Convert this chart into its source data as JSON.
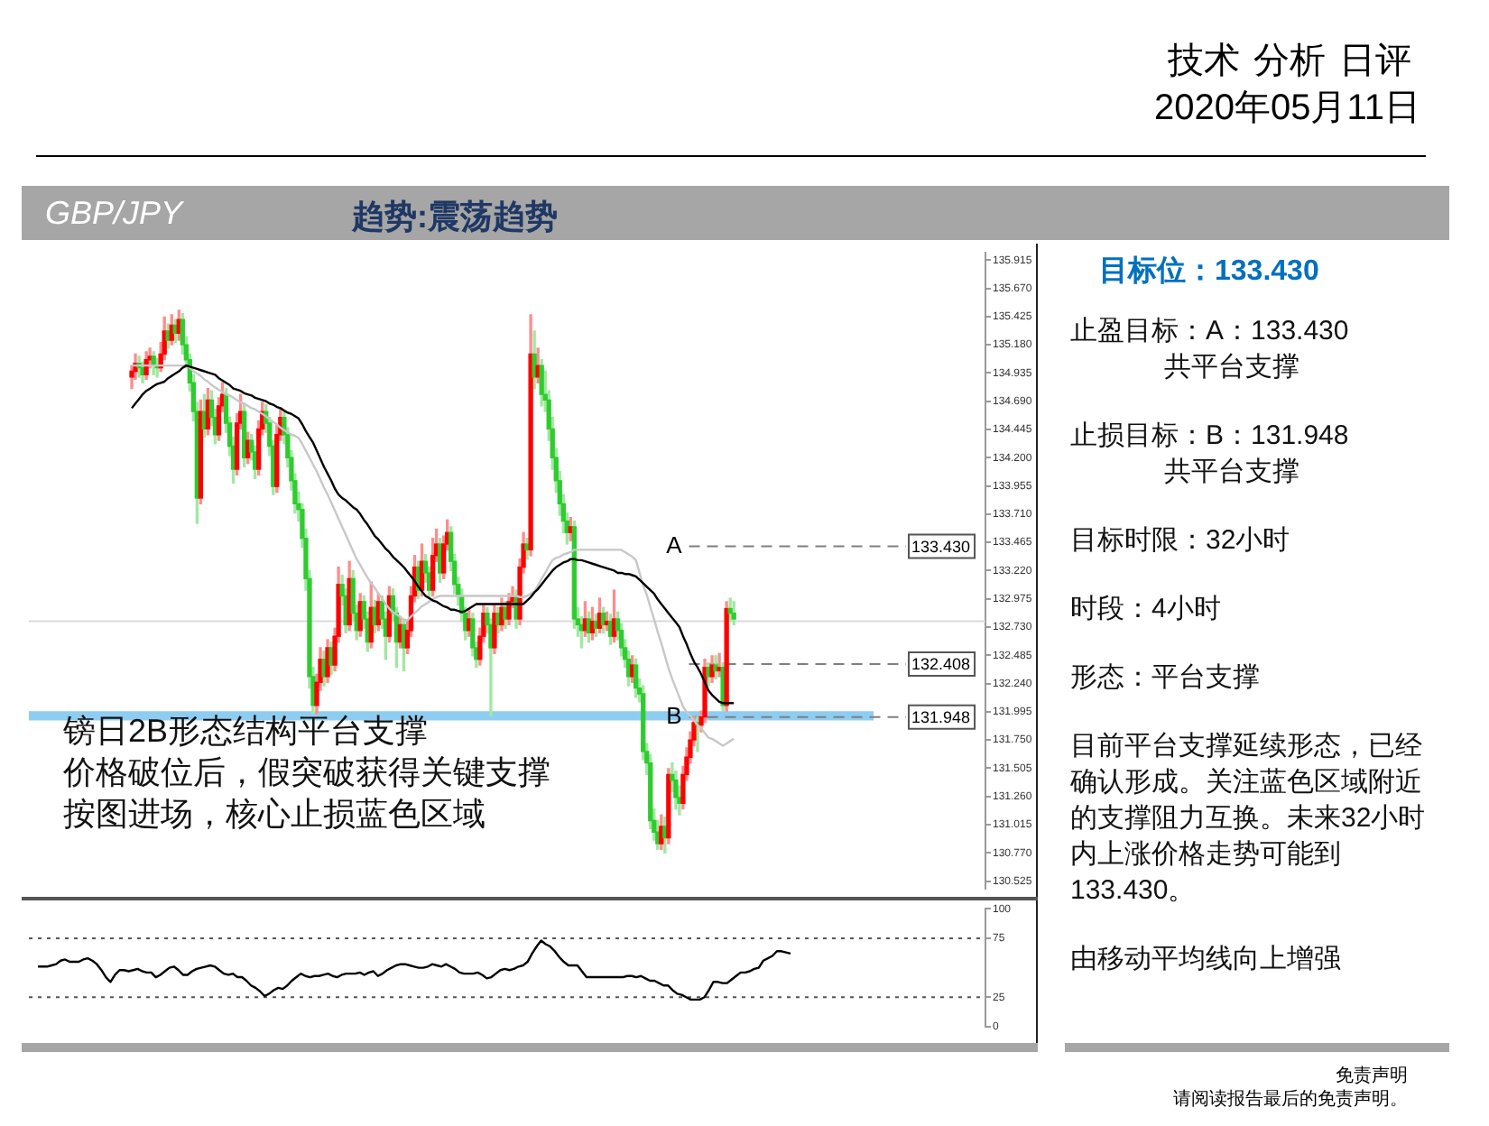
{
  "chart_data": [
    {
      "type": "candlestick",
      "title": "GBP/JPY",
      "subtitle": "趋势:震荡趋势",
      "categories": [
        null,
        null,
        null,
        null,
        null,
        null,
        null,
        null,
        null,
        null,
        null,
        null,
        null,
        null,
        null,
        null,
        null,
        null,
        null,
        null,
        null,
        null,
        null,
        null,
        null,
        null,
        null,
        null,
        null,
        null,
        null,
        null,
        null,
        null,
        null,
        null,
        null,
        null,
        null,
        null,
        null,
        null,
        null,
        null,
        null,
        null,
        null,
        null,
        null,
        null,
        null,
        null,
        null,
        null,
        null,
        null,
        null,
        null,
        null,
        null,
        null,
        null,
        null,
        null,
        null,
        null,
        null,
        null,
        null,
        null,
        null,
        null,
        null,
        null,
        null,
        null,
        null,
        null,
        null,
        null,
        null,
        null,
        null,
        null,
        null,
        null,
        null,
        null,
        null,
        null,
        null,
        null,
        null,
        null,
        null,
        null,
        null,
        null,
        null,
        null,
        null,
        null,
        null,
        null,
        null,
        null,
        null,
        null,
        null,
        null,
        null,
        null,
        null,
        null,
        null,
        null,
        null,
        null,
        null,
        null,
        null,
        null,
        null,
        null,
        null,
        null,
        null,
        null,
        null,
        null,
        null,
        null,
        null,
        null,
        null,
        null,
        null,
        null,
        null,
        null,
        null,
        null,
        null,
        null,
        null,
        null,
        null,
        null,
        null,
        null,
        null,
        null,
        null,
        null,
        null,
        null,
        null,
        null,
        null,
        null,
        null,
        null,
        null,
        null,
        null,
        null,
        null
      ],
      "colors": [
        "#ff0000",
        "#ff0000",
        "#2ecc2e",
        "#2ecc2e",
        "#ff0000",
        "#ff0000",
        "#2ecc2e",
        "#2ecc2e",
        "#ff0000",
        "#ff0000",
        "#2ecc2e",
        "#ff0000",
        "#2ecc2e",
        "#ff0000",
        "#2ecc2e",
        "#2ecc2e",
        "#2ecc2e",
        "#2ecc2e",
        "#2ecc2e",
        "#ff0000",
        "#2ecc2e",
        "#ff0000",
        "#2ecc2e",
        "#2ecc2e",
        "#ff0000",
        "#ff0000",
        "#2ecc2e",
        "#2ecc2e",
        "#2ecc2e",
        "#ff0000",
        "#ff0000",
        "#2ecc2e",
        "#ff0000",
        "#2ecc2e",
        "#2ecc2e",
        "#ff0000",
        "#ff0000",
        "#2ecc2e",
        "#2ecc2e",
        "#2ecc2e",
        "#ff0000",
        "#ff0000",
        "#2ecc2e",
        "#2ecc2e",
        "#2ecc2e",
        "#2ecc2e",
        "#2ecc2e",
        "#2ecc2e",
        "#2ecc2e",
        "#2ecc2e",
        "#2ecc2e",
        "#ff0000",
        "#ff0000",
        "#2ecc2e",
        "#ff0000",
        "#2ecc2e",
        "#ff0000",
        "#ff0000",
        "#2ecc2e",
        "#2ecc2e",
        "#ff0000",
        "#2ecc2e",
        "#2ecc2e",
        "#ff0000",
        "#2ecc2e",
        "#2ecc2e",
        "#ff0000",
        "#2ecc2e",
        "#ff0000",
        "#2ecc2e",
        "#2ecc2e",
        "#ff0000",
        "#2ecc2e",
        "#2ecc2e",
        "#ff0000",
        "#2ecc2e",
        "#ff0000",
        "#ff0000",
        "#ff0000",
        "#2ecc2e",
        "#ff0000",
        "#2ecc2e",
        "#2ecc2e",
        "#ff0000",
        "#ff0000",
        "#2ecc2e",
        "#ff0000",
        "#ff0000",
        "#2ecc2e",
        "#2ecc2e",
        "#2ecc2e",
        "#2ecc2e",
        "#2ecc2e",
        "#ff0000",
        "#2ecc2e",
        "#2ecc2e",
        "#ff0000",
        "#ff0000",
        "#2ecc2e",
        "#2ecc2e",
        "#ff0000",
        "#2ecc2e",
        "#ff0000",
        "#2ecc2e",
        "#ff0000",
        "#ff0000",
        "#2ecc2e",
        "#ff0000",
        "#ff0000",
        "#2ecc2e",
        "#ff0000",
        "#2ecc2e",
        "#ff0000",
        "#2ecc2e",
        "#2ecc2e",
        "#2ecc2e",
        "#2ecc2e",
        "#2ecc2e",
        "#2ecc2e",
        "#2ecc2e",
        "#2ecc2e",
        "#ff0000",
        "#2ecc2e",
        "#2ecc2e",
        "#2ecc2e",
        "#ff0000",
        "#2ecc2e",
        "#ff0000",
        "#2ecc2e",
        "#ff0000",
        "#2ecc2e",
        "#ff0000",
        "#2ecc2e",
        "#ff0000",
        "#2ecc2e",
        "#2ecc2e",
        "#2ecc2e",
        "#2ecc2e",
        "#ff0000",
        "#2ecc2e",
        "#2ecc2e",
        "#2ecc2e",
        "#2ecc2e",
        "#2ecc2e",
        "#2ecc2e",
        "#2ecc2e",
        "#ff0000",
        "#2ecc2e",
        "#ff0000",
        "#2ecc2e",
        "#2ecc2e",
        "#2ecc2e",
        "#ff0000",
        "#ff0000",
        "#ff0000",
        "#ff0000",
        "#2ecc2e",
        "#ff0000",
        "#ff0000",
        "#2ecc2e",
        "#ff0000",
        "#2ecc2e",
        "#ff0000",
        "#2ecc2e",
        "#ff0000",
        "#2ecc2e",
        "#2ecc2e"
      ],
      "ohlc": [
        [
          134.9,
          135.0,
          134.8,
          134.95
        ],
        [
          134.95,
          135.1,
          134.88,
          135.02
        ],
        [
          135.02,
          135.08,
          134.9,
          134.98
        ],
        [
          134.98,
          135.03,
          134.85,
          134.92
        ],
        [
          134.92,
          135.12,
          134.88,
          135.05
        ],
        [
          135.05,
          135.15,
          134.98,
          135.08
        ],
        [
          135.08,
          135.12,
          134.92,
          135.0
        ],
        [
          135.0,
          135.06,
          134.9,
          134.98
        ],
        [
          134.98,
          135.2,
          134.95,
          135.1
        ],
        [
          135.1,
          135.42,
          135.05,
          135.3
        ],
        [
          135.3,
          135.36,
          135.15,
          135.22
        ],
        [
          135.22,
          135.44,
          135.18,
          135.35
        ],
        [
          135.35,
          135.4,
          135.2,
          135.28
        ],
        [
          135.28,
          135.48,
          135.22,
          135.4
        ],
        [
          135.4,
          135.45,
          135.1,
          135.18
        ],
        [
          135.18,
          135.25,
          134.98,
          135.05
        ],
        [
          135.05,
          135.1,
          134.78,
          134.85
        ],
        [
          134.85,
          134.92,
          134.52,
          134.6
        ],
        [
          134.6,
          134.68,
          133.63,
          133.85
        ],
        [
          133.85,
          134.7,
          133.8,
          134.6
        ],
        [
          134.6,
          134.75,
          134.38,
          134.45
        ],
        [
          134.45,
          134.8,
          134.4,
          134.7
        ],
        [
          134.7,
          134.78,
          134.48,
          134.55
        ],
        [
          134.55,
          134.62,
          134.32,
          134.4
        ],
        [
          134.4,
          134.72,
          134.35,
          134.65
        ],
        [
          134.65,
          134.85,
          134.6,
          134.75
        ],
        [
          134.75,
          134.8,
          134.42,
          134.5
        ],
        [
          134.5,
          134.55,
          134.22,
          134.3
        ],
        [
          134.3,
          134.38,
          133.98,
          134.1
        ],
        [
          134.1,
          134.58,
          134.05,
          134.5
        ],
        [
          134.5,
          134.75,
          134.45,
          134.6
        ],
        [
          134.6,
          134.66,
          134.12,
          134.2
        ],
        [
          134.2,
          134.42,
          134.15,
          134.35
        ],
        [
          134.35,
          134.4,
          134.18,
          134.25
        ],
        [
          134.25,
          134.3,
          134.02,
          134.1
        ],
        [
          134.1,
          134.52,
          134.05,
          134.45
        ],
        [
          134.45,
          134.68,
          134.4,
          134.6
        ],
        [
          134.6,
          134.66,
          134.42,
          134.5
        ],
        [
          134.5,
          134.55,
          134.22,
          134.3
        ],
        [
          134.3,
          134.35,
          133.88,
          133.95
        ],
        [
          133.95,
          134.48,
          133.9,
          134.4
        ],
        [
          134.4,
          134.62,
          134.35,
          134.55
        ],
        [
          134.55,
          134.6,
          134.32,
          134.4
        ],
        [
          134.4,
          134.46,
          134.12,
          134.2
        ],
        [
          134.2,
          134.26,
          133.92,
          134.0
        ],
        [
          134.0,
          134.06,
          133.72,
          133.8
        ],
        [
          133.8,
          133.9,
          133.65,
          133.75
        ],
        [
          133.75,
          133.8,
          133.42,
          133.5
        ],
        [
          133.5,
          133.58,
          133.05,
          133.15
        ],
        [
          133.15,
          133.22,
          132.2,
          132.3
        ],
        [
          132.3,
          132.38,
          131.98,
          132.05
        ],
        [
          132.05,
          132.32,
          131.98,
          132.25
        ],
        [
          132.25,
          132.55,
          132.18,
          132.45
        ],
        [
          132.45,
          132.52,
          132.22,
          132.3
        ],
        [
          132.3,
          132.62,
          132.25,
          132.55
        ],
        [
          132.55,
          132.6,
          132.32,
          132.4
        ],
        [
          132.4,
          132.72,
          132.35,
          132.65
        ],
        [
          132.65,
          133.25,
          132.6,
          133.1
        ],
        [
          133.1,
          133.18,
          132.92,
          133.0
        ],
        [
          133.0,
          133.06,
          132.68,
          132.75
        ],
        [
          132.75,
          133.3,
          132.7,
          133.15
        ],
        [
          133.15,
          133.22,
          132.78,
          132.85
        ],
        [
          132.85,
          132.92,
          132.62,
          132.7
        ],
        [
          132.7,
          133.02,
          132.65,
          132.95
        ],
        [
          132.95,
          133.0,
          132.72,
          132.8
        ],
        [
          132.8,
          132.86,
          132.52,
          132.6
        ],
        [
          132.6,
          133.12,
          132.55,
          132.9
        ],
        [
          132.9,
          132.96,
          132.68,
          132.75
        ],
        [
          132.75,
          133.02,
          132.7,
          132.95
        ],
        [
          132.95,
          133.0,
          132.72,
          132.8
        ],
        [
          132.8,
          132.86,
          132.45,
          132.65
        ],
        [
          132.65,
          133.08,
          132.6,
          133.0
        ],
        [
          133.0,
          133.06,
          132.78,
          132.85
        ],
        [
          132.85,
          132.9,
          132.38,
          132.6
        ],
        [
          132.6,
          132.82,
          132.55,
          132.75
        ],
        [
          132.75,
          132.8,
          132.35,
          132.55
        ],
        [
          132.55,
          132.78,
          132.5,
          132.7
        ],
        [
          132.7,
          133.08,
          132.65,
          133.0
        ],
        [
          133.0,
          133.35,
          132.95,
          133.25
        ],
        [
          133.25,
          133.3,
          132.98,
          133.05
        ],
        [
          133.05,
          133.45,
          133.0,
          133.3
        ],
        [
          133.3,
          133.36,
          133.12,
          133.2
        ],
        [
          133.2,
          133.25,
          132.98,
          133.05
        ],
        [
          133.05,
          133.5,
          133.0,
          133.35
        ],
        [
          133.35,
          133.58,
          133.3,
          133.45
        ],
        [
          133.45,
          133.5,
          133.12,
          133.2
        ],
        [
          133.2,
          133.52,
          133.15,
          133.45
        ],
        [
          133.45,
          133.66,
          133.4,
          133.55
        ],
        [
          133.55,
          133.6,
          133.22,
          133.3
        ],
        [
          133.3,
          133.36,
          133.02,
          133.1
        ],
        [
          133.1,
          133.16,
          132.92,
          133.0
        ],
        [
          133.0,
          133.06,
          132.78,
          132.85
        ],
        [
          132.85,
          132.9,
          132.62,
          132.7
        ],
        [
          132.7,
          132.88,
          132.65,
          132.8
        ],
        [
          132.8,
          132.85,
          132.48,
          132.55
        ],
        [
          132.55,
          132.6,
          132.38,
          132.45
        ],
        [
          132.45,
          132.72,
          132.4,
          132.65
        ],
        [
          132.65,
          132.92,
          132.6,
          132.85
        ],
        [
          132.85,
          132.9,
          132.68,
          132.75
        ],
        [
          132.75,
          132.8,
          131.96,
          132.55
        ],
        [
          132.55,
          132.92,
          132.5,
          132.85
        ],
        [
          132.85,
          132.9,
          132.68,
          132.75
        ],
        [
          132.75,
          132.98,
          132.7,
          132.9
        ],
        [
          132.9,
          132.95,
          132.72,
          132.8
        ],
        [
          132.8,
          133.02,
          132.75,
          132.95
        ],
        [
          132.95,
          133.08,
          132.9,
          133.0
        ],
        [
          133.0,
          133.05,
          132.72,
          132.8
        ],
        [
          132.8,
          133.32,
          132.75,
          133.25
        ],
        [
          133.25,
          133.55,
          133.2,
          133.45
        ],
        [
          133.45,
          133.5,
          133.32,
          133.4
        ],
        [
          133.4,
          135.44,
          133.35,
          135.1
        ],
        [
          135.1,
          135.3,
          134.8,
          134.9
        ],
        [
          134.9,
          135.15,
          134.85,
          135.0
        ],
        [
          135.0,
          135.05,
          134.65,
          134.75
        ],
        [
          134.75,
          134.95,
          134.6,
          134.7
        ],
        [
          134.7,
          134.78,
          134.35,
          134.45
        ],
        [
          134.45,
          134.55,
          134.1,
          134.2
        ],
        [
          134.2,
          134.28,
          133.9,
          134.0
        ],
        [
          134.0,
          134.08,
          133.7,
          133.8
        ],
        [
          133.8,
          133.88,
          133.55,
          133.65
        ],
        [
          133.65,
          133.72,
          133.45,
          133.55
        ],
        [
          133.55,
          133.68,
          133.48,
          133.6
        ],
        [
          133.6,
          133.65,
          132.72,
          132.8
        ],
        [
          132.8,
          132.9,
          132.65,
          132.75
        ],
        [
          132.75,
          132.82,
          132.55,
          132.7
        ],
        [
          132.7,
          132.95,
          132.65,
          132.8
        ],
        [
          132.8,
          132.86,
          132.6,
          132.68
        ],
        [
          132.68,
          132.9,
          132.62,
          132.78
        ],
        [
          132.78,
          132.84,
          132.65,
          132.72
        ],
        [
          132.72,
          132.98,
          132.68,
          132.85
        ],
        [
          132.85,
          132.9,
          132.68,
          132.75
        ],
        [
          132.75,
          132.86,
          132.7,
          132.78
        ],
        [
          132.78,
          132.84,
          132.58,
          132.65
        ],
        [
          132.65,
          133.05,
          132.6,
          132.8
        ],
        [
          132.8,
          132.86,
          132.62,
          132.7
        ],
        [
          132.7,
          132.76,
          132.48,
          132.55
        ],
        [
          132.55,
          132.62,
          132.38,
          132.45
        ],
        [
          132.45,
          132.52,
          132.22,
          132.3
        ],
        [
          132.3,
          132.48,
          132.25,
          132.4
        ],
        [
          132.4,
          132.45,
          132.12,
          132.2
        ],
        [
          132.2,
          132.28,
          132.08,
          132.15
        ],
        [
          132.15,
          132.22,
          131.58,
          131.65
        ],
        [
          131.65,
          131.72,
          131.45,
          131.55
        ],
        [
          131.55,
          131.62,
          130.98,
          131.05
        ],
        [
          131.05,
          131.15,
          130.88,
          130.95
        ],
        [
          130.95,
          131.05,
          130.8,
          130.85
        ],
        [
          130.85,
          131.1,
          130.8,
          131.0
        ],
        [
          131.0,
          131.08,
          130.77,
          130.9
        ],
        [
          130.9,
          131.5,
          130.85,
          131.45
        ],
        [
          131.45,
          131.55,
          131.3,
          131.4
        ],
        [
          131.4,
          131.48,
          131.15,
          131.25
        ],
        [
          131.25,
          131.35,
          131.1,
          131.2
        ],
        [
          131.2,
          131.52,
          131.15,
          131.45
        ],
        [
          131.45,
          131.68,
          131.4,
          131.6
        ],
        [
          131.6,
          131.82,
          131.55,
          131.75
        ],
        [
          131.75,
          131.95,
          131.7,
          131.9
        ],
        [
          131.9,
          131.95,
          131.65,
          131.88
        ],
        [
          131.88,
          132.0,
          131.82,
          131.95
        ],
        [
          131.95,
          132.45,
          131.9,
          132.38
        ],
        [
          132.38,
          132.42,
          132.22,
          132.3
        ],
        [
          132.3,
          132.48,
          132.25,
          132.4
        ],
        [
          132.4,
          132.48,
          132.28,
          132.35
        ],
        [
          132.35,
          132.5,
          132.3,
          132.38
        ],
        [
          132.38,
          132.42,
          132.0,
          132.05
        ],
        [
          132.05,
          132.95,
          132.0,
          132.89
        ],
        [
          132.89,
          132.98,
          132.78,
          132.85
        ],
        [
          132.85,
          132.95,
          132.75,
          132.8
        ]
      ],
      "series": [
        {
          "type": "line",
          "color": "#000000",
          "values": [
            134.63,
            134.67,
            134.71,
            134.75,
            134.78,
            134.8,
            134.82,
            134.84,
            134.85,
            134.86,
            134.89,
            134.91,
            134.93,
            134.95,
            134.98,
            135.0,
            134.99,
            134.98,
            134.97,
            134.96,
            134.95,
            134.94,
            134.93,
            134.92,
            134.89,
            134.87,
            134.85,
            134.83,
            134.8,
            134.79,
            134.78,
            134.76,
            134.75,
            134.74,
            134.72,
            134.71,
            134.7,
            134.69,
            134.67,
            134.66,
            134.64,
            134.63,
            134.61,
            134.59,
            134.58,
            134.56,
            134.54,
            134.49,
            134.43,
            134.38,
            134.33,
            134.26,
            134.19,
            134.12,
            134.06,
            134.0,
            133.93,
            133.88,
            133.85,
            133.83,
            133.8,
            133.77,
            133.75,
            133.71,
            133.66,
            133.62,
            133.57,
            133.52,
            133.49,
            133.45,
            133.41,
            133.38,
            133.34,
            133.31,
            133.28,
            133.25,
            133.21,
            133.17,
            133.13,
            133.08,
            133.04,
            133.0,
            132.98,
            132.96,
            132.95,
            132.93,
            132.91,
            132.9,
            132.88,
            132.88,
            132.87,
            132.86,
            132.87,
            132.89,
            132.91,
            132.93,
            132.93,
            132.93,
            132.93,
            132.93,
            132.93,
            132.93,
            132.93,
            132.93,
            132.93,
            132.93,
            132.93,
            132.93,
            132.93,
            132.96,
            132.99,
            133.03,
            133.06,
            133.1,
            133.14,
            133.18,
            133.22,
            133.25,
            133.27,
            133.29,
            133.3,
            133.32,
            133.32,
            133.31,
            133.31,
            133.3,
            133.29,
            133.28,
            133.27,
            133.26,
            133.25,
            133.24,
            133.23,
            133.22,
            133.2,
            133.2,
            133.19,
            133.19,
            133.18,
            133.17,
            133.14,
            133.11,
            133.08,
            133.05,
            133.02,
            132.97,
            132.93,
            132.89,
            132.85,
            132.81,
            132.77,
            132.73,
            132.65,
            132.58,
            132.5,
            132.43,
            132.38,
            132.32,
            132.25,
            132.18,
            132.14,
            132.11,
            132.08,
            132.07,
            132.07,
            132.07,
            132.07
          ]
        },
        {
          "type": "line",
          "color": "#c8c8c8",
          "values": [
            135.0,
            135.0,
            135.0,
            135.0,
            135.0,
            135.0,
            135.0,
            135.0,
            135.0,
            135.0,
            135.0,
            135.0,
            135.0,
            135.0,
            135.0,
            135.0,
            134.98,
            134.95,
            134.93,
            134.91,
            134.88,
            134.86,
            134.83,
            134.81,
            134.79,
            134.77,
            134.75,
            134.74,
            134.72,
            134.7,
            134.68,
            134.67,
            134.65,
            134.63,
            134.62,
            134.6,
            134.58,
            134.56,
            134.53,
            134.51,
            134.49,
            134.46,
            134.44,
            134.42,
            134.4,
            134.39,
            134.37,
            134.32,
            134.26,
            134.2,
            134.14,
            134.08,
            134.01,
            133.94,
            133.88,
            133.81,
            133.74,
            133.67,
            133.6,
            133.53,
            133.46,
            133.39,
            133.32,
            133.27,
            133.21,
            133.16,
            133.11,
            133.07,
            133.02,
            132.98,
            132.93,
            132.89,
            132.86,
            132.84,
            132.82,
            132.79,
            132.79,
            132.82,
            132.85,
            132.88,
            132.91,
            132.93,
            132.95,
            132.97,
            132.99,
            133.0,
            133.0,
            133.0,
            133.0,
            133.0,
            133.0,
            133.0,
            133.0,
            133.0,
            133.0,
            133.0,
            133.0,
            133.0,
            133.0,
            133.0,
            133.0,
            133.0,
            133.0,
            133.0,
            133.0,
            133.0,
            133.0,
            132.99,
            132.99,
            133.0,
            133.02,
            133.04,
            133.09,
            133.15,
            133.2,
            133.26,
            133.31,
            133.33,
            133.34,
            133.36,
            133.37,
            133.38,
            133.4,
            133.4,
            133.4,
            133.4,
            133.4,
            133.4,
            133.4,
            133.4,
            133.4,
            133.4,
            133.4,
            133.4,
            133.4,
            133.4,
            133.38,
            133.36,
            133.34,
            133.31,
            133.2,
            133.09,
            133.01,
            132.9,
            132.8,
            132.69,
            132.59,
            132.48,
            132.37,
            132.28,
            132.2,
            132.12,
            132.04,
            131.99,
            131.96,
            131.92,
            131.88,
            131.85,
            131.81,
            131.77,
            131.76,
            131.74,
            131.72,
            131.7,
            131.72,
            131.74,
            131.76
          ]
        }
      ],
      "ylim": [
        130.46,
        135.98
      ],
      "yticks": [
        {
          "value": 135.915,
          "label": "135.915"
        },
        {
          "value": 135.67,
          "label": "135.670"
        },
        {
          "value": 135.425,
          "label": "135.425"
        },
        {
          "value": 135.18,
          "label": "135.180"
        },
        {
          "value": 134.935,
          "label": "134.935"
        },
        {
          "value": 134.69,
          "label": "134.690"
        },
        {
          "value": 134.445,
          "label": "134.445"
        },
        {
          "value": 134.2,
          "label": "134.200"
        },
        {
          "value": 133.955,
          "label": "133.955"
        },
        {
          "value": 133.71,
          "label": "133.710"
        },
        {
          "value": 133.465,
          "label": "133.465"
        },
        {
          "value": 133.22,
          "label": "133.220"
        },
        {
          "value": 132.975,
          "label": "132.975"
        },
        {
          "value": 132.73,
          "label": "132.730"
        },
        {
          "value": 132.485,
          "label": "132.485"
        },
        {
          "value": 132.24,
          "label": "132.240"
        },
        {
          "value": 131.995,
          "label": "131.995"
        },
        {
          "value": 131.75,
          "label": "131.750"
        },
        {
          "value": 131.505,
          "label": "131.505"
        },
        {
          "value": 131.26,
          "label": "131.260"
        },
        {
          "value": 131.015,
          "label": "131.015"
        },
        {
          "value": 130.77,
          "label": "130.770"
        },
        {
          "value": 130.525,
          "label": "130.525"
        }
      ],
      "ref_lines": [
        {
          "axis": "y",
          "value": 132.78,
          "color": "#d9d9d9"
        },
        {
          "axis": "y",
          "value": 133.43,
          "label": "133.430",
          "color": "#7f7f7f",
          "line_style": "dashed"
        },
        {
          "axis": "y",
          "value": 132.408,
          "label": "132.408",
          "color": "#7f7f7f",
          "line_style": "dashed"
        },
        {
          "axis": "y",
          "value": 131.948,
          "label": "131.948",
          "color": "#7f7f7f",
          "line_style": "dashed"
        }
      ],
      "bands": [
        {
          "axis": "y",
          "from": 131.92,
          "to": 132.0,
          "color": "#8ecdf2"
        }
      ],
      "annotations": [
        "A",
        "B",
        "镑日2B形态结构平台支撑",
        "价格破位后，假突破获得关键支撑",
        "按图进场，核心止损蓝色区域"
      ]
    },
    {
      "type": "line",
      "categories": [
        null,
        null,
        null,
        null,
        null,
        null,
        null,
        null,
        null,
        null,
        null,
        null,
        null,
        null,
        null,
        null,
        null,
        null,
        null,
        null,
        null,
        null,
        null,
        null,
        null,
        null,
        null,
        null,
        null,
        null,
        null,
        null,
        null,
        null,
        null,
        null,
        null,
        null,
        null,
        null,
        null,
        null,
        null,
        null,
        null,
        null,
        null,
        null,
        null,
        null,
        null,
        null,
        null,
        null,
        null,
        null,
        null,
        null,
        null,
        null,
        null,
        null,
        null,
        null,
        null,
        null,
        null,
        null,
        null,
        null,
        null,
        null,
        null,
        null,
        null,
        null,
        null,
        null,
        null,
        null,
        null,
        null,
        null,
        null,
        null,
        null,
        null,
        null,
        null,
        null,
        null,
        null,
        null,
        null,
        null,
        null,
        null,
        null,
        null,
        null,
        null,
        null,
        null,
        null,
        null,
        null,
        null,
        null,
        null,
        null,
        null,
        null,
        null,
        null,
        null,
        null,
        null,
        null,
        null,
        null,
        null,
        null,
        null,
        null,
        null,
        null,
        null,
        null,
        null,
        null,
        null,
        null,
        null,
        null,
        null,
        null,
        null,
        null,
        null,
        null,
        null,
        null,
        null,
        null,
        null,
        null,
        null,
        null,
        null,
        null,
        null,
        null,
        null,
        null,
        null,
        null,
        null,
        null,
        null,
        null,
        null,
        null,
        null,
        null,
        null,
        null,
        null
      ],
      "color": "#000000",
      "values": [
        51,
        51,
        51,
        52,
        53,
        56,
        57,
        55,
        55,
        55,
        57,
        58,
        56,
        53,
        48,
        42,
        38,
        44,
        48,
        48,
        47,
        48,
        49,
        47,
        46,
        46,
        42,
        44,
        47,
        50,
        51,
        48,
        44,
        44,
        47,
        49,
        50,
        51,
        52,
        51,
        48,
        45,
        44,
        45,
        42,
        42,
        39,
        35,
        33,
        30,
        26,
        28,
        31,
        33,
        32,
        35,
        39,
        42,
        45,
        43,
        42,
        43,
        43,
        44,
        45,
        43,
        42,
        44,
        45,
        45,
        45,
        46,
        44,
        46,
        47,
        43,
        45,
        48,
        50,
        52,
        53,
        53,
        52,
        51,
        50,
        50,
        51,
        53,
        52,
        51,
        53,
        51,
        49,
        46,
        45,
        45,
        45,
        46,
        44,
        41,
        42,
        45,
        48,
        49,
        48,
        49,
        51,
        52,
        55,
        62,
        68,
        73,
        70,
        68,
        64,
        59,
        55,
        52,
        52,
        52,
        47,
        42,
        42,
        42,
        42,
        42,
        42,
        42,
        42,
        42,
        43,
        43,
        42,
        43,
        41,
        39,
        39,
        37,
        35,
        35,
        31,
        28,
        27,
        25,
        23,
        23,
        23,
        25,
        31,
        38,
        38,
        37,
        37,
        40,
        43,
        46,
        46,
        47,
        49,
        50,
        56,
        58,
        60,
        64,
        64,
        63,
        62
      ],
      "ylim": [
        0,
        100
      ],
      "yticks": [
        0,
        25,
        75,
        100
      ],
      "ref_lines": [
        {
          "axis": "y",
          "value": 25,
          "color": "#555555",
          "line_style": "dotted"
        },
        {
          "axis": "y",
          "value": 75,
          "color": "#555555",
          "line_style": "dotted"
        }
      ]
    },
    {
      "type": "other",
      "title": "目标位：133.430",
      "annotations": [
        "止盈目标：A：133.430",
        "共平台支撑",
        "止损目标：B：131.948",
        "共平台支撑",
        "目标时限：32小时",
        "时段：4小时",
        "形态：平台支撑",
        "目前平台支撑延续形态，已经确认形成。关注蓝色区域附近的支撑阻力互换。未来32小时内上涨价格走势可能到133.430。",
        "由移动平均线向上增强"
      ]
    },
    {
      "type": "other",
      "title": "技术 分析 日评",
      "subtitle": "2020年05月11日",
      "annotations": [
        "免责声明",
        "请阅读报告最后的免责声明。"
      ]
    }
  ]
}
